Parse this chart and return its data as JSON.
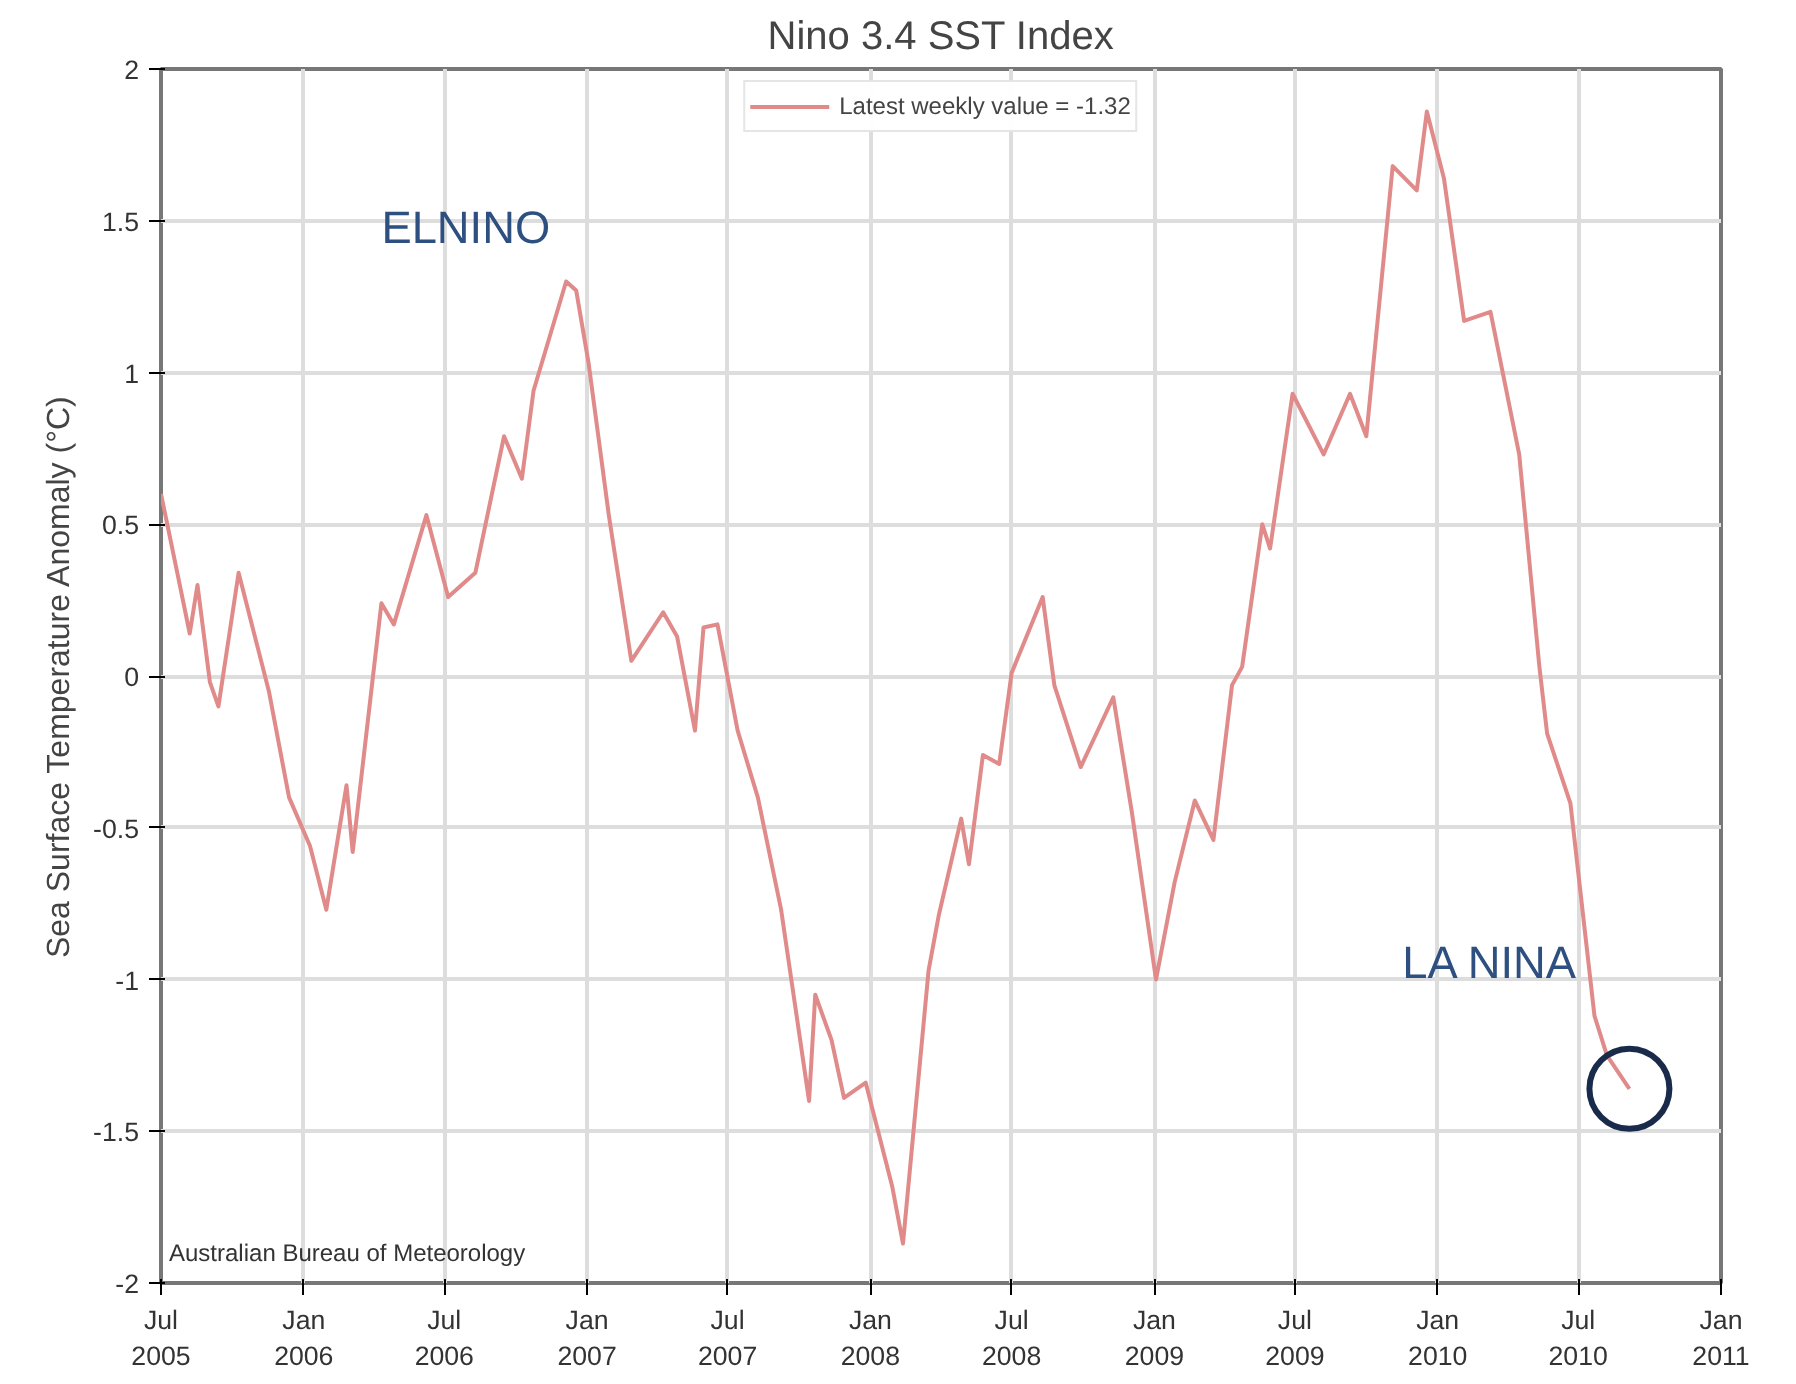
{
  "chart_data": {
    "type": "line",
    "title": "Nino 3.4 SST Index",
    "ylabel": "Sea Surface Temperature Anomaly (°C)",
    "x": [
      "2005-07-01",
      "2005-07-22",
      "2005-08-07",
      "2005-08-17",
      "2005-09-02",
      "2005-09-13",
      "2005-10-09",
      "2005-11-17",
      "2005-12-13",
      "2006-01-09",
      "2006-01-30",
      "2006-02-25",
      "2006-03-05",
      "2006-04-11",
      "2006-04-27",
      "2006-06-08",
      "2006-07-06",
      "2006-08-10",
      "2006-09-16",
      "2006-10-09",
      "2006-10-24",
      "2006-12-05",
      "2006-12-18",
      "2007-01-03",
      "2007-01-29",
      "2007-02-27",
      "2007-04-09",
      "2007-04-27",
      "2007-05-20",
      "2007-05-31",
      "2007-06-18",
      "2007-07-14",
      "2007-08-09",
      "2007-09-08",
      "2007-10-14",
      "2007-10-22",
      "2007-11-12",
      "2007-11-28",
      "2007-12-26",
      "2008-01-29",
      "2008-02-12",
      "2008-03-16",
      "2008-03-29",
      "2008-04-27",
      "2008-05-07",
      "2008-05-25",
      "2008-06-15",
      "2008-07-01",
      "2008-08-10",
      "2008-08-25",
      "2008-09-28",
      "2008-11-09",
      "2008-12-03",
      "2009-01-03",
      "2009-01-27",
      "2009-02-22",
      "2009-03-18",
      "2009-04-11",
      "2009-04-24",
      "2009-05-20",
      "2009-05-30",
      "2009-06-28",
      "2009-08-07",
      "2009-09-10",
      "2009-10-01",
      "2009-11-04",
      "2009-12-05",
      "2009-12-18",
      "2010-01-09",
      "2010-02-04",
      "2010-03-10",
      "2010-04-16",
      "2010-05-12",
      "2010-05-22",
      "2010-06-21",
      "2010-07-22",
      "2010-08-07",
      "2010-09-05"
    ],
    "series": [
      {
        "name": "Latest weekly value = -1.32",
        "color": "#e08a8a",
        "values": [
          0.6,
          0.34,
          0.14,
          0.3,
          -0.02,
          -0.1,
          0.34,
          -0.05,
          -0.4,
          -0.56,
          -0.77,
          -0.36,
          -0.58,
          0.24,
          0.17,
          0.53,
          0.26,
          0.34,
          0.79,
          0.65,
          0.94,
          1.3,
          1.27,
          1.03,
          0.53,
          0.05,
          0.21,
          0.13,
          -0.18,
          0.16,
          0.17,
          -0.18,
          -0.4,
          -0.77,
          -1.4,
          -1.05,
          -1.2,
          -1.39,
          -1.34,
          -1.68,
          -1.87,
          -0.97,
          -0.79,
          -0.47,
          -0.62,
          -0.26,
          -0.29,
          0.01,
          0.26,
          -0.03,
          -0.3,
          -0.07,
          -0.45,
          -1.0,
          -0.68,
          -0.41,
          -0.54,
          -0.03,
          0.03,
          0.5,
          0.42,
          0.93,
          0.73,
          0.93,
          0.79,
          1.68,
          1.6,
          1.86,
          1.64,
          1.17,
          1.2,
          0.73,
          0.03,
          -0.19,
          -0.42,
          -1.12,
          -1.25,
          -1.36
        ]
      }
    ],
    "xlim": [
      "2005-07-01",
      "2011-01-01"
    ],
    "xticks": [
      {
        "value": "2005-07",
        "label": "Jul\n2005"
      },
      {
        "value": "2006-01",
        "label": "Jan\n2006"
      },
      {
        "value": "2006-07",
        "label": "Jul\n2006"
      },
      {
        "value": "2007-01",
        "label": "Jan\n2007"
      },
      {
        "value": "2007-07",
        "label": "Jul\n2007"
      },
      {
        "value": "2008-01",
        "label": "Jan\n2008"
      },
      {
        "value": "2008-07",
        "label": "Jul\n2008"
      },
      {
        "value": "2009-01",
        "label": "Jan\n2009"
      },
      {
        "value": "2009-07",
        "label": "Jul\n2009"
      },
      {
        "value": "2010-01",
        "label": "Jan\n2010"
      },
      {
        "value": "2010-07",
        "label": "Jul\n2010"
      },
      {
        "value": "2011-01",
        "label": "Jan\n2011"
      }
    ],
    "ylim": [
      -2,
      2
    ],
    "yticks": [
      -2,
      -1.5,
      -1,
      -0.5,
      0,
      0.5,
      1,
      1.5,
      2
    ],
    "grid": true,
    "legend": "top",
    "annotations": [
      {
        "text": "ELNINO",
        "x": "2006-12-05",
        "y": 1.3
      },
      {
        "text": "LA NINA",
        "x": "2010-07-22",
        "y": -1.12
      },
      "Australian Bureau of Meteorology"
    ]
  }
}
